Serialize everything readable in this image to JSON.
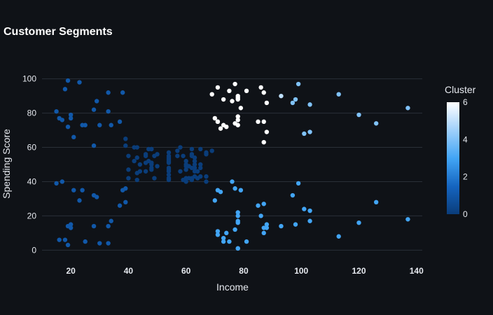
{
  "chart_data": {
    "type": "scatter",
    "title": "Customer Segments",
    "xlabel": "Income",
    "ylabel": "Spending Score",
    "xlim": [
      10,
      142
    ],
    "ylim": [
      -6,
      106
    ],
    "x_ticks": [
      20,
      40,
      60,
      80,
      100,
      120,
      140
    ],
    "y_ticks": [
      0,
      20,
      40,
      60,
      80,
      100
    ],
    "grid": true,
    "colorbar": {
      "title": "Cluster",
      "range": [
        0,
        6
      ],
      "ticks": [
        0,
        2,
        4,
        6
      ],
      "colors": [
        "#0a3d7a",
        "#1565c0",
        "#42a5f5",
        "#9fd0fb",
        "#ffffff"
      ]
    },
    "points": [
      {
        "x": 15,
        "y": 81,
        "c": 1
      },
      {
        "x": 16,
        "y": 77,
        "c": 1
      },
      {
        "x": 17,
        "y": 76,
        "c": 1
      },
      {
        "x": 18,
        "y": 94,
        "c": 1
      },
      {
        "x": 19,
        "y": 99,
        "c": 1
      },
      {
        "x": 19,
        "y": 72,
        "c": 1
      },
      {
        "x": 20,
        "y": 77,
        "c": 1
      },
      {
        "x": 20,
        "y": 79,
        "c": 1
      },
      {
        "x": 21,
        "y": 66,
        "c": 1
      },
      {
        "x": 23,
        "y": 98,
        "c": 1
      },
      {
        "x": 24,
        "y": 73,
        "c": 1
      },
      {
        "x": 25,
        "y": 73,
        "c": 1
      },
      {
        "x": 28,
        "y": 82,
        "c": 1
      },
      {
        "x": 28,
        "y": 61,
        "c": 1
      },
      {
        "x": 29,
        "y": 87,
        "c": 1
      },
      {
        "x": 30,
        "y": 73,
        "c": 1
      },
      {
        "x": 33,
        "y": 92,
        "c": 1
      },
      {
        "x": 33,
        "y": 81,
        "c": 1
      },
      {
        "x": 34,
        "y": 73,
        "c": 1
      },
      {
        "x": 37,
        "y": 75,
        "c": 1
      },
      {
        "x": 38,
        "y": 92,
        "c": 1
      },
      {
        "x": 15,
        "y": 39,
        "c": 1
      },
      {
        "x": 16,
        "y": 6,
        "c": 1
      },
      {
        "x": 17,
        "y": 40,
        "c": 1
      },
      {
        "x": 18,
        "y": 6,
        "c": 1
      },
      {
        "x": 19,
        "y": 3,
        "c": 1
      },
      {
        "x": 19,
        "y": 14,
        "c": 1
      },
      {
        "x": 20,
        "y": 15,
        "c": 1
      },
      {
        "x": 20,
        "y": 13,
        "c": 1
      },
      {
        "x": 21,
        "y": 35,
        "c": 1
      },
      {
        "x": 23,
        "y": 29,
        "c": 1
      },
      {
        "x": 24,
        "y": 35,
        "c": 1
      },
      {
        "x": 25,
        "y": 5,
        "c": 1
      },
      {
        "x": 28,
        "y": 14,
        "c": 1
      },
      {
        "x": 28,
        "y": 32,
        "c": 1
      },
      {
        "x": 29,
        "y": 31,
        "c": 1
      },
      {
        "x": 30,
        "y": 4,
        "c": 1
      },
      {
        "x": 33,
        "y": 4,
        "c": 1
      },
      {
        "x": 33,
        "y": 14,
        "c": 1
      },
      {
        "x": 34,
        "y": 17,
        "c": 1
      },
      {
        "x": 37,
        "y": 26,
        "c": 1
      },
      {
        "x": 38,
        "y": 35,
        "c": 1
      },
      {
        "x": 39,
        "y": 36,
        "c": 1
      },
      {
        "x": 39,
        "y": 28,
        "c": 1
      },
      {
        "x": 39,
        "y": 65,
        "c": 0
      },
      {
        "x": 39,
        "y": 61,
        "c": 0
      },
      {
        "x": 40,
        "y": 55,
        "c": 0
      },
      {
        "x": 40,
        "y": 47,
        "c": 0
      },
      {
        "x": 40,
        "y": 42,
        "c": 0
      },
      {
        "x": 42,
        "y": 52,
        "c": 0
      },
      {
        "x": 42,
        "y": 60,
        "c": 0
      },
      {
        "x": 43,
        "y": 54,
        "c": 0
      },
      {
        "x": 43,
        "y": 60,
        "c": 0
      },
      {
        "x": 43,
        "y": 45,
        "c": 0
      },
      {
        "x": 43,
        "y": 41,
        "c": 0
      },
      {
        "x": 44,
        "y": 50,
        "c": 0
      },
      {
        "x": 44,
        "y": 46,
        "c": 0
      },
      {
        "x": 46,
        "y": 51,
        "c": 0
      },
      {
        "x": 46,
        "y": 46,
        "c": 0
      },
      {
        "x": 46,
        "y": 56,
        "c": 0
      },
      {
        "x": 46,
        "y": 55,
        "c": 0
      },
      {
        "x": 47,
        "y": 52,
        "c": 0
      },
      {
        "x": 47,
        "y": 59,
        "c": 0
      },
      {
        "x": 48,
        "y": 51,
        "c": 0
      },
      {
        "x": 48,
        "y": 59,
        "c": 0
      },
      {
        "x": 48,
        "y": 50,
        "c": 0
      },
      {
        "x": 48,
        "y": 48,
        "c": 0
      },
      {
        "x": 48,
        "y": 59,
        "c": 0
      },
      {
        "x": 48,
        "y": 47,
        "c": 0
      },
      {
        "x": 49,
        "y": 55,
        "c": 0
      },
      {
        "x": 49,
        "y": 42,
        "c": 0
      },
      {
        "x": 50,
        "y": 49,
        "c": 0
      },
      {
        "x": 50,
        "y": 56,
        "c": 0
      },
      {
        "x": 54,
        "y": 47,
        "c": 0
      },
      {
        "x": 54,
        "y": 54,
        "c": 0
      },
      {
        "x": 54,
        "y": 53,
        "c": 0
      },
      {
        "x": 54,
        "y": 48,
        "c": 0
      },
      {
        "x": 54,
        "y": 52,
        "c": 0
      },
      {
        "x": 54,
        "y": 42,
        "c": 0
      },
      {
        "x": 54,
        "y": 51,
        "c": 0
      },
      {
        "x": 54,
        "y": 55,
        "c": 0
      },
      {
        "x": 54,
        "y": 41,
        "c": 0
      },
      {
        "x": 54,
        "y": 44,
        "c": 0
      },
      {
        "x": 54,
        "y": 57,
        "c": 0
      },
      {
        "x": 54,
        "y": 46,
        "c": 0
      },
      {
        "x": 57,
        "y": 58,
        "c": 0
      },
      {
        "x": 57,
        "y": 55,
        "c": 0
      },
      {
        "x": 58,
        "y": 60,
        "c": 0
      },
      {
        "x": 58,
        "y": 46,
        "c": 0
      },
      {
        "x": 59,
        "y": 55,
        "c": 0
      },
      {
        "x": 59,
        "y": 41,
        "c": 0
      },
      {
        "x": 60,
        "y": 49,
        "c": 0
      },
      {
        "x": 60,
        "y": 40,
        "c": 0
      },
      {
        "x": 60,
        "y": 42,
        "c": 0
      },
      {
        "x": 60,
        "y": 52,
        "c": 0
      },
      {
        "x": 60,
        "y": 47,
        "c": 0
      },
      {
        "x": 60,
        "y": 50,
        "c": 0
      },
      {
        "x": 61,
        "y": 42,
        "c": 0
      },
      {
        "x": 61,
        "y": 49,
        "c": 0
      },
      {
        "x": 62,
        "y": 41,
        "c": 0
      },
      {
        "x": 62,
        "y": 48,
        "c": 0
      },
      {
        "x": 62,
        "y": 59,
        "c": 0
      },
      {
        "x": 62,
        "y": 55,
        "c": 0
      },
      {
        "x": 62,
        "y": 56,
        "c": 0
      },
      {
        "x": 62,
        "y": 42,
        "c": 0
      },
      {
        "x": 63,
        "y": 50,
        "c": 0
      },
      {
        "x": 63,
        "y": 46,
        "c": 0
      },
      {
        "x": 63,
        "y": 43,
        "c": 0
      },
      {
        "x": 63,
        "y": 48,
        "c": 0
      },
      {
        "x": 63,
        "y": 52,
        "c": 0
      },
      {
        "x": 63,
        "y": 54,
        "c": 0
      },
      {
        "x": 64,
        "y": 42,
        "c": 0
      },
      {
        "x": 64,
        "y": 46,
        "c": 0
      },
      {
        "x": 65,
        "y": 48,
        "c": 0
      },
      {
        "x": 65,
        "y": 50,
        "c": 0
      },
      {
        "x": 65,
        "y": 43,
        "c": 0
      },
      {
        "x": 65,
        "y": 59,
        "c": 0
      },
      {
        "x": 67,
        "y": 43,
        "c": 0
      },
      {
        "x": 67,
        "y": 57,
        "c": 0
      },
      {
        "x": 67,
        "y": 56,
        "c": 0
      },
      {
        "x": 67,
        "y": 40,
        "c": 0
      },
      {
        "x": 69,
        "y": 58,
        "c": 0
      },
      {
        "x": 69,
        "y": 91,
        "c": 6
      },
      {
        "x": 70,
        "y": 29,
        "c": 3
      },
      {
        "x": 70,
        "y": 77,
        "c": 6
      },
      {
        "x": 71,
        "y": 35,
        "c": 3
      },
      {
        "x": 71,
        "y": 95,
        "c": 6
      },
      {
        "x": 71,
        "y": 11,
        "c": 3
      },
      {
        "x": 71,
        "y": 75,
        "c": 6
      },
      {
        "x": 71,
        "y": 9,
        "c": 3
      },
      {
        "x": 71,
        "y": 75,
        "c": 6
      },
      {
        "x": 72,
        "y": 34,
        "c": 3
      },
      {
        "x": 72,
        "y": 71,
        "c": 6
      },
      {
        "x": 73,
        "y": 5,
        "c": 3
      },
      {
        "x": 73,
        "y": 88,
        "c": 6
      },
      {
        "x": 73,
        "y": 7,
        "c": 3
      },
      {
        "x": 73,
        "y": 73,
        "c": 6
      },
      {
        "x": 74,
        "y": 10,
        "c": 3
      },
      {
        "x": 74,
        "y": 72,
        "c": 6
      },
      {
        "x": 75,
        "y": 5,
        "c": 3
      },
      {
        "x": 75,
        "y": 93,
        "c": 6
      },
      {
        "x": 76,
        "y": 40,
        "c": 3
      },
      {
        "x": 76,
        "y": 87,
        "c": 6
      },
      {
        "x": 77,
        "y": 12,
        "c": 3
      },
      {
        "x": 77,
        "y": 97,
        "c": 6
      },
      {
        "x": 77,
        "y": 36,
        "c": 3
      },
      {
        "x": 77,
        "y": 74,
        "c": 6
      },
      {
        "x": 78,
        "y": 22,
        "c": 3
      },
      {
        "x": 78,
        "y": 90,
        "c": 6
      },
      {
        "x": 78,
        "y": 17,
        "c": 3
      },
      {
        "x": 78,
        "y": 88,
        "c": 6
      },
      {
        "x": 78,
        "y": 20,
        "c": 3
      },
      {
        "x": 78,
        "y": 76,
        "c": 6
      },
      {
        "x": 78,
        "y": 16,
        "c": 3
      },
      {
        "x": 78,
        "y": 89,
        "c": 6
      },
      {
        "x": 78,
        "y": 1,
        "c": 3
      },
      {
        "x": 78,
        "y": 78,
        "c": 6
      },
      {
        "x": 78,
        "y": 1,
        "c": 3
      },
      {
        "x": 78,
        "y": 73,
        "c": 6
      },
      {
        "x": 79,
        "y": 35,
        "c": 3
      },
      {
        "x": 79,
        "y": 83,
        "c": 6
      },
      {
        "x": 81,
        "y": 5,
        "c": 3
      },
      {
        "x": 81,
        "y": 93,
        "c": 6
      },
      {
        "x": 85,
        "y": 26,
        "c": 3
      },
      {
        "x": 85,
        "y": 75,
        "c": 6
      },
      {
        "x": 86,
        "y": 20,
        "c": 3
      },
      {
        "x": 86,
        "y": 95,
        "c": 6
      },
      {
        "x": 87,
        "y": 27,
        "c": 3
      },
      {
        "x": 87,
        "y": 63,
        "c": 6
      },
      {
        "x": 87,
        "y": 13,
        "c": 3
      },
      {
        "x": 87,
        "y": 75,
        "c": 6
      },
      {
        "x": 87,
        "y": 10,
        "c": 3
      },
      {
        "x": 87,
        "y": 92,
        "c": 6
      },
      {
        "x": 88,
        "y": 13,
        "c": 3
      },
      {
        "x": 88,
        "y": 86,
        "c": 6
      },
      {
        "x": 88,
        "y": 15,
        "c": 3
      },
      {
        "x": 88,
        "y": 69,
        "c": 6
      },
      {
        "x": 93,
        "y": 14,
        "c": 3
      },
      {
        "x": 93,
        "y": 90,
        "c": 5
      },
      {
        "x": 97,
        "y": 32,
        "c": 3
      },
      {
        "x": 97,
        "y": 86,
        "c": 4
      },
      {
        "x": 98,
        "y": 15,
        "c": 3
      },
      {
        "x": 98,
        "y": 88,
        "c": 4
      },
      {
        "x": 99,
        "y": 39,
        "c": 3
      },
      {
        "x": 99,
        "y": 97,
        "c": 4
      },
      {
        "x": 101,
        "y": 24,
        "c": 3
      },
      {
        "x": 101,
        "y": 68,
        "c": 4
      },
      {
        "x": 103,
        "y": 17,
        "c": 3
      },
      {
        "x": 103,
        "y": 85,
        "c": 4
      },
      {
        "x": 103,
        "y": 23,
        "c": 3
      },
      {
        "x": 103,
        "y": 69,
        "c": 4
      },
      {
        "x": 113,
        "y": 8,
        "c": 3
      },
      {
        "x": 113,
        "y": 91,
        "c": 4
      },
      {
        "x": 120,
        "y": 16,
        "c": 3
      },
      {
        "x": 120,
        "y": 79,
        "c": 4
      },
      {
        "x": 126,
        "y": 28,
        "c": 3
      },
      {
        "x": 126,
        "y": 74,
        "c": 4
      },
      {
        "x": 137,
        "y": 18,
        "c": 3
      },
      {
        "x": 137,
        "y": 83,
        "c": 4
      }
    ]
  }
}
